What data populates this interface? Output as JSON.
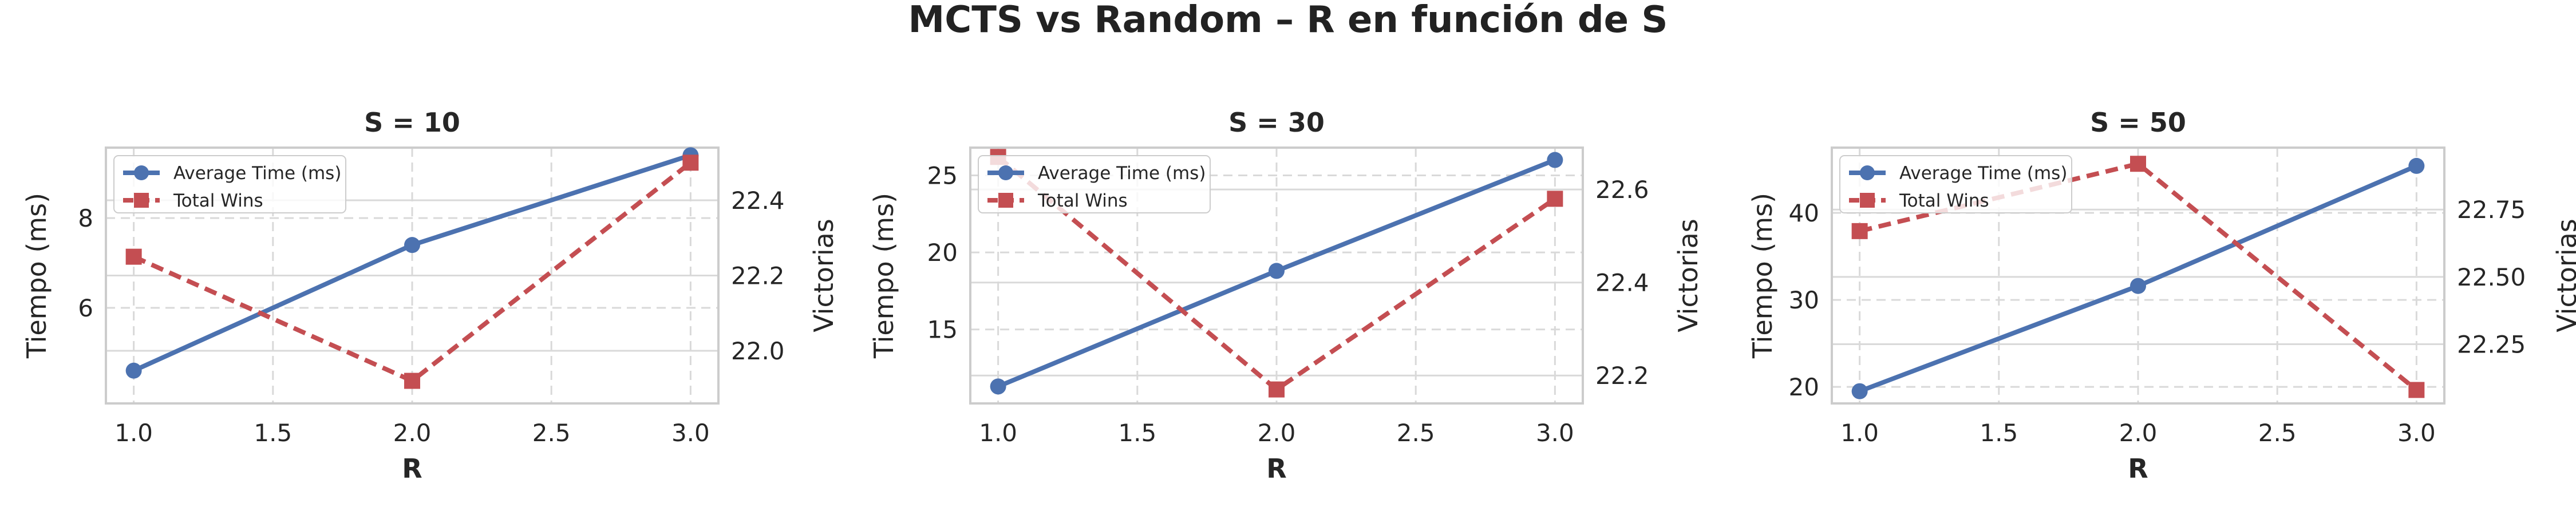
{
  "figure": {
    "title": "MCTS vs Random – R en función de S"
  },
  "colors": {
    "time": "#4c72b0",
    "wins": "#c44e52",
    "grid": "#d9d9d9",
    "spine": "#cccccc",
    "text": "#262626"
  },
  "chart_data": [
    {
      "type": "line",
      "title": "S = 10",
      "xlabel": "R",
      "ylabel": "Tiempo (ms)",
      "y2label": "Victorias",
      "x": [
        1.0,
        2.0,
        3.0
      ],
      "xticks": [
        "1.0",
        "1.5",
        "2.0",
        "2.5",
        "3.0"
      ],
      "xlim": [
        0.9,
        3.1
      ],
      "yticks": [
        "6",
        "8"
      ],
      "ylim": [
        3.87,
        9.57
      ],
      "y2ticks": [
        "22.0",
        "22.2",
        "22.4"
      ],
      "y2lim": [
        21.86,
        22.54
      ],
      "grid": true,
      "legend": "top-left",
      "series": [
        {
          "name": "Average Time (ms)",
          "axis": "left",
          "marker": "circle",
          "linestyle": "solid",
          "values": [
            4.6,
            7.4,
            9.4
          ]
        },
        {
          "name": "Total Wins",
          "axis": "right",
          "marker": "square",
          "linestyle": "dashed",
          "values": [
            22.25,
            21.92,
            22.5
          ]
        }
      ]
    },
    {
      "type": "line",
      "title": "S = 30",
      "xlabel": "R",
      "ylabel": "Tiempo (ms)",
      "y2label": "Victorias",
      "x": [
        1.0,
        2.0,
        3.0
      ],
      "xticks": [
        "1.0",
        "1.5",
        "2.0",
        "2.5",
        "3.0"
      ],
      "xlim": [
        0.9,
        3.1
      ],
      "yticks": [
        "15",
        "20",
        "25"
      ],
      "ylim": [
        10.2,
        26.8
      ],
      "y2ticks": [
        "22.2",
        "22.4",
        "22.6"
      ],
      "y2lim": [
        22.14,
        22.69
      ],
      "grid": true,
      "legend": "top-left",
      "series": [
        {
          "name": "Average Time (ms)",
          "axis": "left",
          "marker": "circle",
          "linestyle": "solid",
          "values": [
            11.3,
            18.8,
            26.0
          ]
        },
        {
          "name": "Total Wins",
          "axis": "right",
          "marker": "square",
          "linestyle": "dashed",
          "values": [
            22.67,
            22.17,
            22.58
          ]
        }
      ]
    },
    {
      "type": "line",
      "title": "S = 50",
      "xlabel": "R",
      "ylabel": "Tiempo (ms)",
      "y2label": "Victorias",
      "x": [
        1.0,
        2.0,
        3.0
      ],
      "xticks": [
        "1.0",
        "1.5",
        "2.0",
        "2.5",
        "3.0"
      ],
      "xlim": [
        0.9,
        3.1
      ],
      "yticks": [
        "20",
        "30",
        "40"
      ],
      "ylim": [
        18.1,
        47.5
      ],
      "y2ticks": [
        "22.25",
        "22.50",
        "22.75"
      ],
      "y2lim": [
        22.03,
        22.98
      ],
      "grid": true,
      "legend": "top-left",
      "series": [
        {
          "name": "Average Time (ms)",
          "axis": "left",
          "marker": "circle",
          "linestyle": "solid",
          "values": [
            19.5,
            31.6,
            45.4
          ]
        },
        {
          "name": "Total Wins",
          "axis": "right",
          "marker": "square",
          "linestyle": "dashed",
          "values": [
            22.67,
            22.92,
            22.08
          ]
        }
      ]
    }
  ]
}
